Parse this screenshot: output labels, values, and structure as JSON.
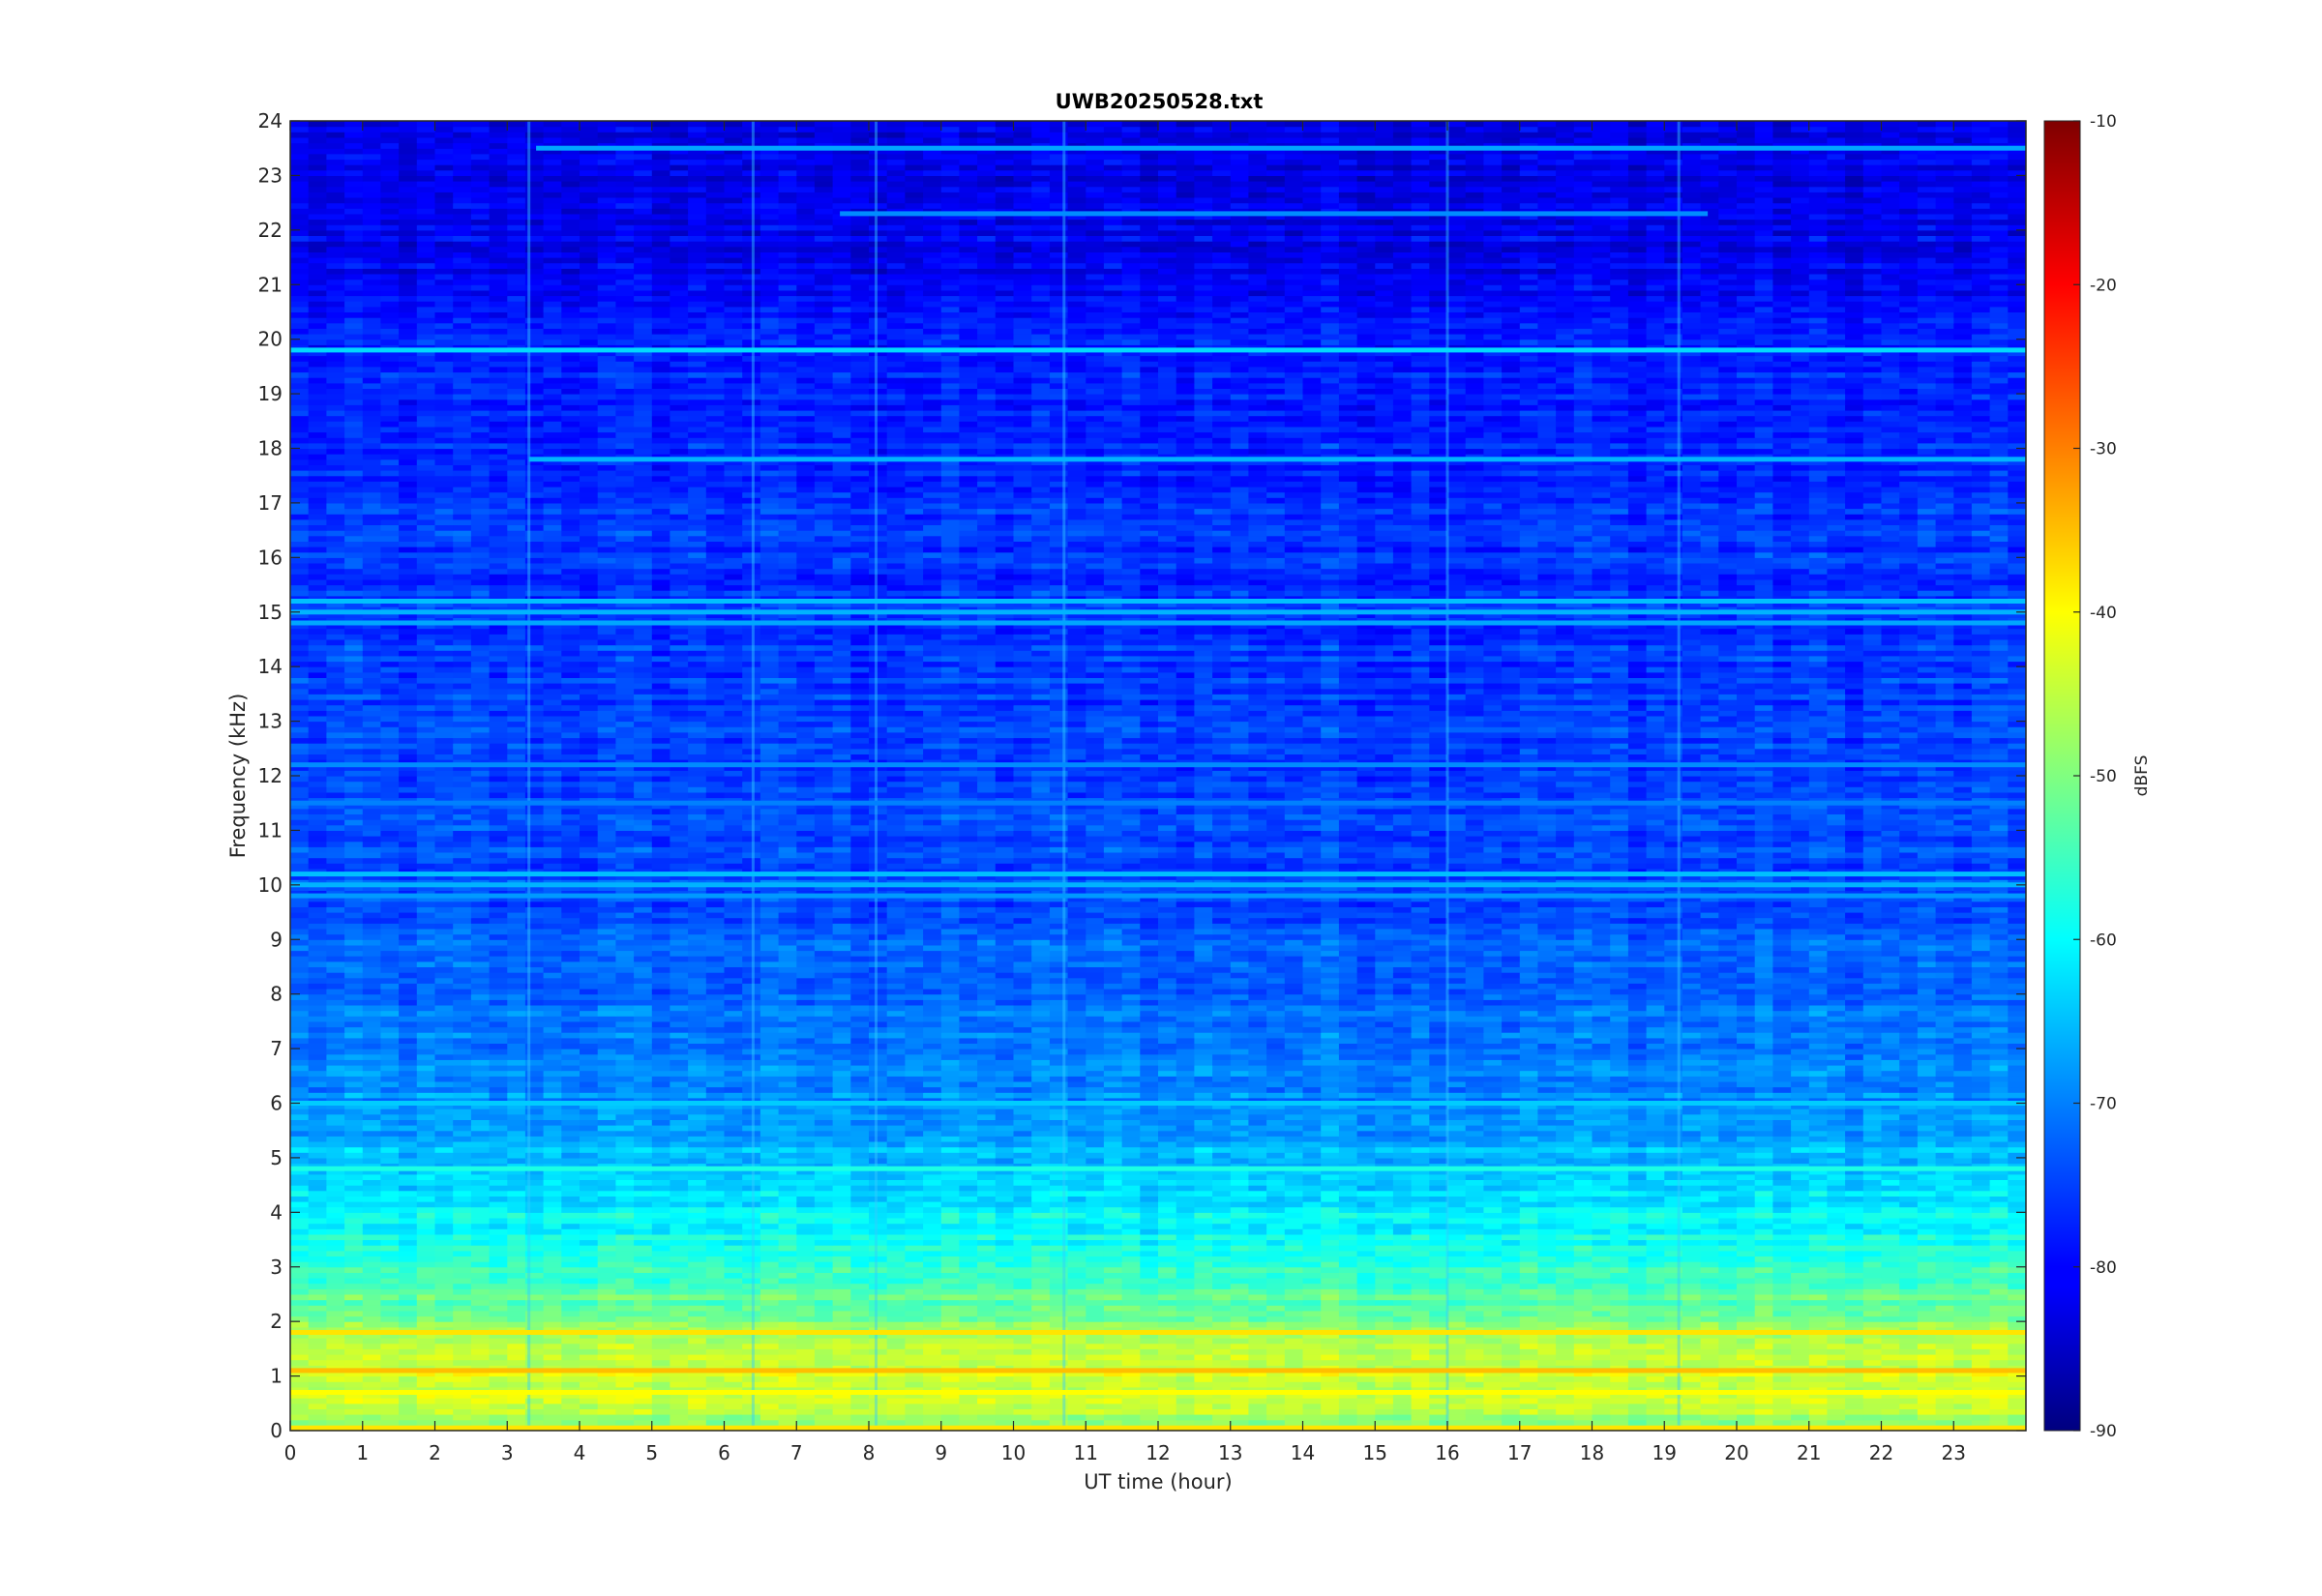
{
  "chart_data": {
    "type": "heatmap",
    "title": "UWB20250528.txt",
    "xlabel": "UT time (hour)",
    "ylabel": "Frequency (kHz)",
    "xlim": [
      0,
      24
    ],
    "ylim": [
      0,
      24
    ],
    "x_ticks": [
      "0",
      "1",
      "2",
      "3",
      "4",
      "5",
      "6",
      "7",
      "8",
      "9",
      "10",
      "11",
      "12",
      "13",
      "14",
      "15",
      "16",
      "17",
      "18",
      "19",
      "20",
      "21",
      "22",
      "23"
    ],
    "y_ticks": [
      "0",
      "1",
      "2",
      "3",
      "4",
      "5",
      "6",
      "7",
      "8",
      "9",
      "10",
      "11",
      "12",
      "13",
      "14",
      "15",
      "16",
      "17",
      "18",
      "19",
      "20",
      "21",
      "22",
      "23",
      "24"
    ],
    "colormap": "jet",
    "colorbar": {
      "label": "dBFS",
      "range": [
        -90,
        -10
      ],
      "ticks": [
        "-10",
        "-20",
        "-30",
        "-40",
        "-50",
        "-60",
        "-70",
        "-80",
        "-90"
      ]
    },
    "background_level_profile": [
      {
        "freq_khz": 0,
        "dbfs": -48
      },
      {
        "freq_khz": 1,
        "dbfs": -42
      },
      {
        "freq_khz": 2,
        "dbfs": -50
      },
      {
        "freq_khz": 3,
        "dbfs": -57
      },
      {
        "freq_khz": 4,
        "dbfs": -61
      },
      {
        "freq_khz": 5,
        "dbfs": -65
      },
      {
        "freq_khz": 6,
        "dbfs": -69
      },
      {
        "freq_khz": 8,
        "dbfs": -72
      },
      {
        "freq_khz": 10,
        "dbfs": -74
      },
      {
        "freq_khz": 13,
        "dbfs": -75
      },
      {
        "freq_khz": 16,
        "dbfs": -76
      },
      {
        "freq_khz": 19,
        "dbfs": -77
      },
      {
        "freq_khz": 20.6,
        "dbfs": -80
      },
      {
        "freq_khz": 24,
        "dbfs": -83
      }
    ],
    "tone_lines": [
      {
        "freq_khz": 19.8,
        "start_hour": 0,
        "end_hour": 24,
        "dbfs": -63
      },
      {
        "freq_khz": 17.8,
        "start_hour": 3.3,
        "end_hour": 24,
        "dbfs": -66
      },
      {
        "freq_khz": 23.5,
        "start_hour": 3.4,
        "end_hour": 24,
        "dbfs": -67
      },
      {
        "freq_khz": 22.3,
        "start_hour": 7.6,
        "end_hour": 19.6,
        "dbfs": -69
      },
      {
        "freq_khz": 15.2,
        "start_hour": 0,
        "end_hour": 24,
        "dbfs": -65
      },
      {
        "freq_khz": 15.0,
        "start_hour": 0,
        "end_hour": 24,
        "dbfs": -66
      },
      {
        "freq_khz": 14.8,
        "start_hour": 0,
        "end_hour": 24,
        "dbfs": -67
      },
      {
        "freq_khz": 10.2,
        "start_hour": 0,
        "end_hour": 24,
        "dbfs": -65
      },
      {
        "freq_khz": 10.0,
        "start_hour": 0,
        "end_hour": 24,
        "dbfs": -66
      },
      {
        "freq_khz": 9.8,
        "start_hour": 0,
        "end_hour": 24,
        "dbfs": -68
      },
      {
        "freq_khz": 12.2,
        "start_hour": 0,
        "end_hour": 24,
        "dbfs": -69
      },
      {
        "freq_khz": 11.5,
        "start_hour": 0,
        "end_hour": 24,
        "dbfs": -70
      },
      {
        "freq_khz": 6.0,
        "start_hour": 0,
        "end_hour": 24,
        "dbfs": -64
      },
      {
        "freq_khz": 4.8,
        "start_hour": 0,
        "end_hour": 24,
        "dbfs": -58
      },
      {
        "freq_khz": 1.8,
        "start_hour": 0,
        "end_hour": 24,
        "dbfs": -38
      },
      {
        "freq_khz": 1.1,
        "start_hour": 0,
        "end_hour": 24,
        "dbfs": -35
      },
      {
        "freq_khz": 0.7,
        "start_hour": 0,
        "end_hour": 24,
        "dbfs": -40
      },
      {
        "freq_khz": 0.05,
        "start_hour": 0,
        "end_hour": 24,
        "dbfs": -38
      }
    ],
    "broadband_vertical_events_hour": [
      3.3,
      6.4,
      8.1,
      10.7,
      16.0,
      19.2
    ]
  }
}
